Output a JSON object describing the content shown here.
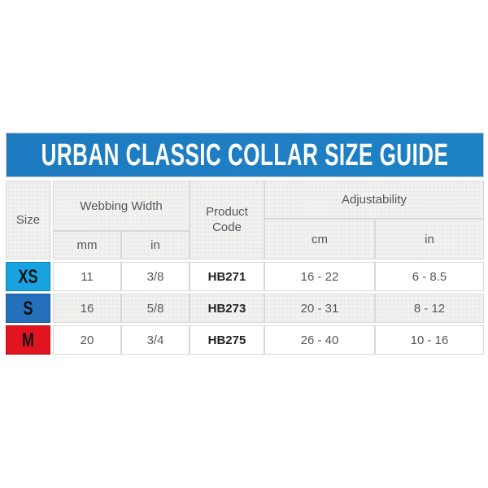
{
  "banner": {
    "title": "URBAN CLASSIC COLLAR SIZE GUIDE",
    "background_color": "#1f7ec4",
    "text_color": "#ffffff"
  },
  "table": {
    "headers": {
      "size": "Size",
      "webbing_width": "Webbing Width",
      "product_code": "Product Code",
      "adjustability": "Adjustability",
      "webbing_unit_mm": "mm",
      "webbing_unit_in": "in",
      "adjust_unit_cm": "cm",
      "adjust_unit_in": "in"
    },
    "rows": [
      {
        "size": "XS",
        "size_color": "#16a3df",
        "webbing_mm": "11",
        "webbing_in": "3/8",
        "product_code": "HB271",
        "adjust_cm": "16 - 22",
        "adjust_in": "6 - 8.5"
      },
      {
        "size": "S",
        "size_color": "#2470bc",
        "webbing_mm": "16",
        "webbing_in": "5/8",
        "product_code": "HB273",
        "adjust_cm": "20 - 31",
        "adjust_in": "8 - 12"
      },
      {
        "size": "M",
        "size_color": "#e11420",
        "webbing_mm": "20",
        "webbing_in": "3/4",
        "product_code": "HB275",
        "adjust_cm": "26 - 40",
        "adjust_in": "10 - 16"
      }
    ],
    "colors": {
      "header_background": "#f1f1ef",
      "alt_row_background": "#f1f1ef",
      "border": "#d8d8d6",
      "text": "#56575a"
    }
  }
}
